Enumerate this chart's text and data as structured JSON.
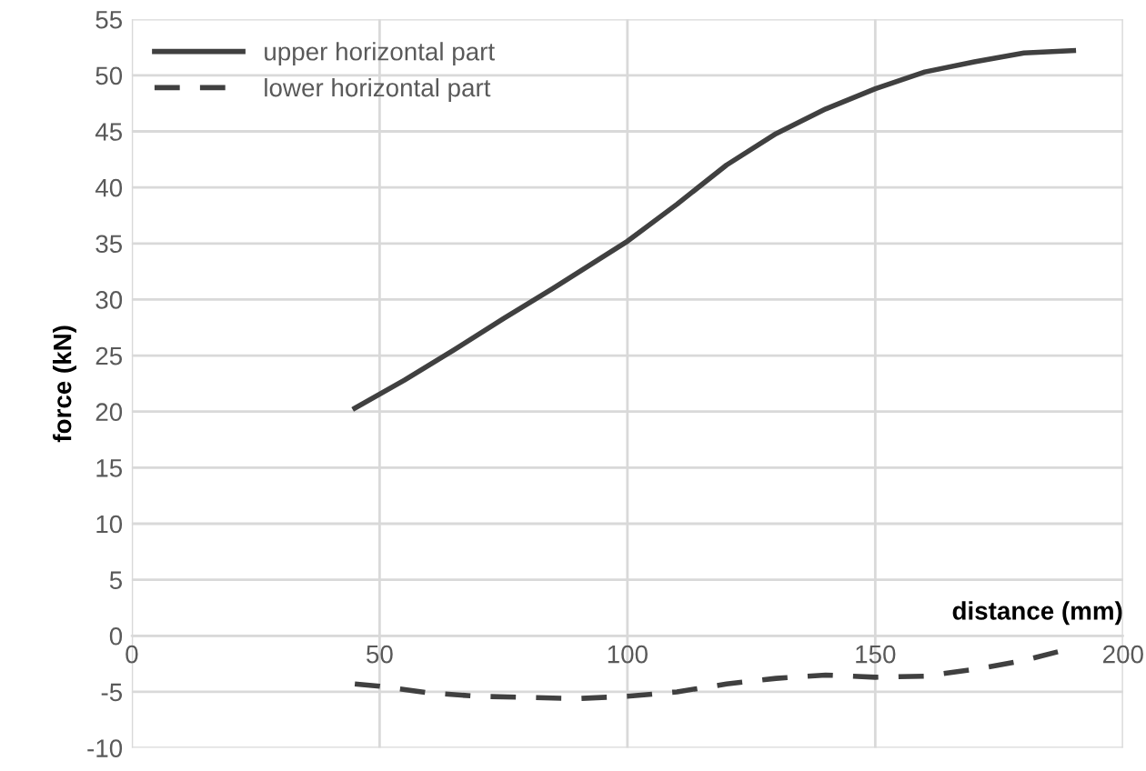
{
  "chart_data": {
    "type": "line",
    "xlabel": "distance (mm)",
    "ylabel": "force (kN)",
    "xlim": [
      0,
      200
    ],
    "xticks": [
      0,
      50,
      100,
      150,
      200
    ],
    "ylim": [
      -10,
      55
    ],
    "yticks": [
      -10,
      -5,
      0,
      5,
      10,
      15,
      20,
      25,
      30,
      35,
      40,
      45,
      50,
      55
    ],
    "grid": true,
    "legend": "top left",
    "series": [
      {
        "name": "upper horizontal part",
        "color": "#404040",
        "line_style": "solid",
        "x": [
          45,
          55,
          65,
          75,
          85,
          95,
          100,
          110,
          120,
          130,
          140,
          150,
          160,
          170,
          180,
          190
        ],
        "values": [
          20.3,
          22.8,
          25.5,
          28.3,
          31,
          33.8,
          35.2,
          38.5,
          42,
          44.8,
          47,
          48.8,
          50.3,
          51.2,
          52,
          52.2
        ]
      },
      {
        "name": "lower horizontal part",
        "color": "#404040",
        "line_style": "dashed",
        "x": [
          45,
          50,
          60,
          70,
          80,
          90,
          100,
          110,
          120,
          130,
          140,
          150,
          160,
          170,
          180,
          188
        ],
        "values": [
          -4.3,
          -4.5,
          -5.1,
          -5.4,
          -5.5,
          -5.6,
          -5.4,
          -5,
          -4.3,
          -3.8,
          -3.5,
          -3.7,
          -3.6,
          -3,
          -2.2,
          -1.3
        ]
      }
    ]
  }
}
